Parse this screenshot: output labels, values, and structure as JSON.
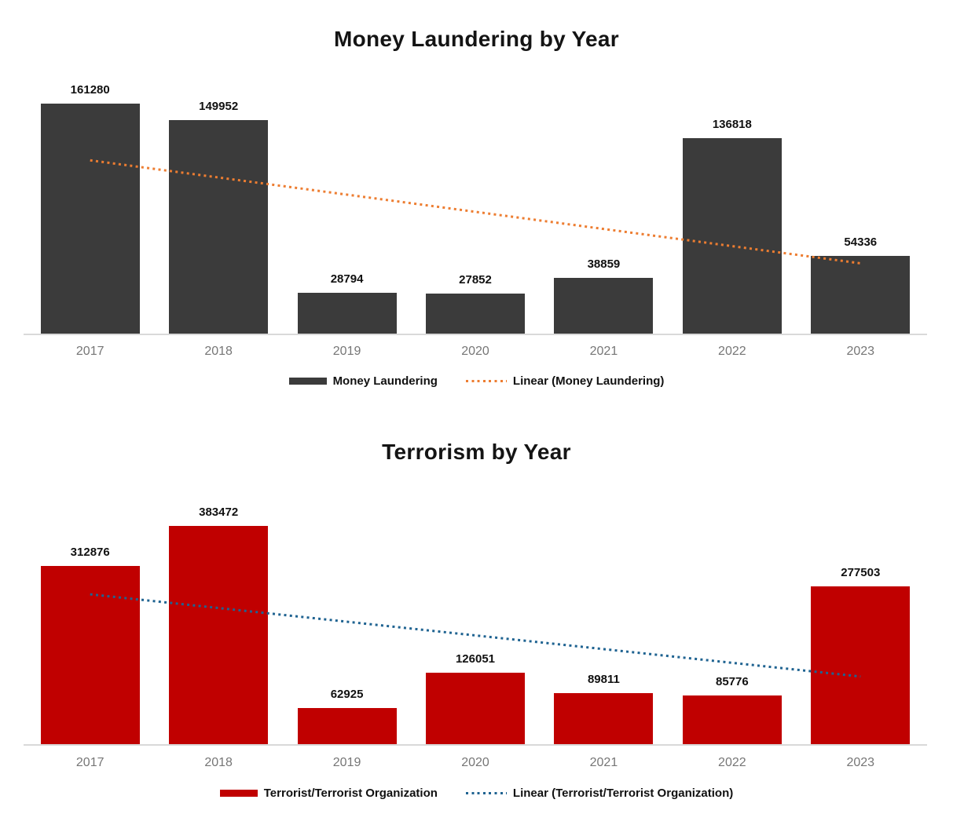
{
  "page": {
    "background": "#FFFFFF"
  },
  "chart_data": [
    {
      "type": "bar",
      "title": "Money Laundering by Year",
      "categories": [
        "2017",
        "2018",
        "2019",
        "2020",
        "2021",
        "2022",
        "2023"
      ],
      "series": [
        {
          "name": "Money Laundering",
          "color": "#3B3B3B",
          "values": [
            161280,
            149952,
            28794,
            27852,
            38859,
            136818,
            54336
          ]
        }
      ],
      "trendline": {
        "label": "Linear (Money Laundering)",
        "color": "#ED7D31",
        "style": "dotted",
        "fit": "linear"
      },
      "data_labels": true,
      "xlabel": "",
      "ylabel": "",
      "ylim": [
        0,
        180000
      ],
      "grid": false,
      "legend_position": "bottom",
      "axis_colors": {
        "line": "#D9D9D9",
        "tick_text": "#767676"
      },
      "data_label_color": "#111111"
    },
    {
      "type": "bar",
      "title": "Terrorism by Year",
      "categories": [
        "2017",
        "2018",
        "2019",
        "2020",
        "2021",
        "2022",
        "2023"
      ],
      "series": [
        {
          "name": "Terrorist/Terrorist Organization",
          "color": "#C00000",
          "values": [
            312876,
            383472,
            62925,
            126051,
            89811,
            85776,
            277503
          ]
        }
      ],
      "trendline": {
        "label": "Linear (Terrorist/Terrorist Organization)",
        "color": "#1F6391",
        "style": "dotted",
        "fit": "linear"
      },
      "data_labels": true,
      "xlabel": "",
      "ylabel": "",
      "ylim": [
        0,
        450000
      ],
      "grid": false,
      "legend_position": "bottom",
      "axis_colors": {
        "line": "#D9D9D9",
        "tick_text": "#767676"
      },
      "data_label_color": "#111111"
    }
  ]
}
